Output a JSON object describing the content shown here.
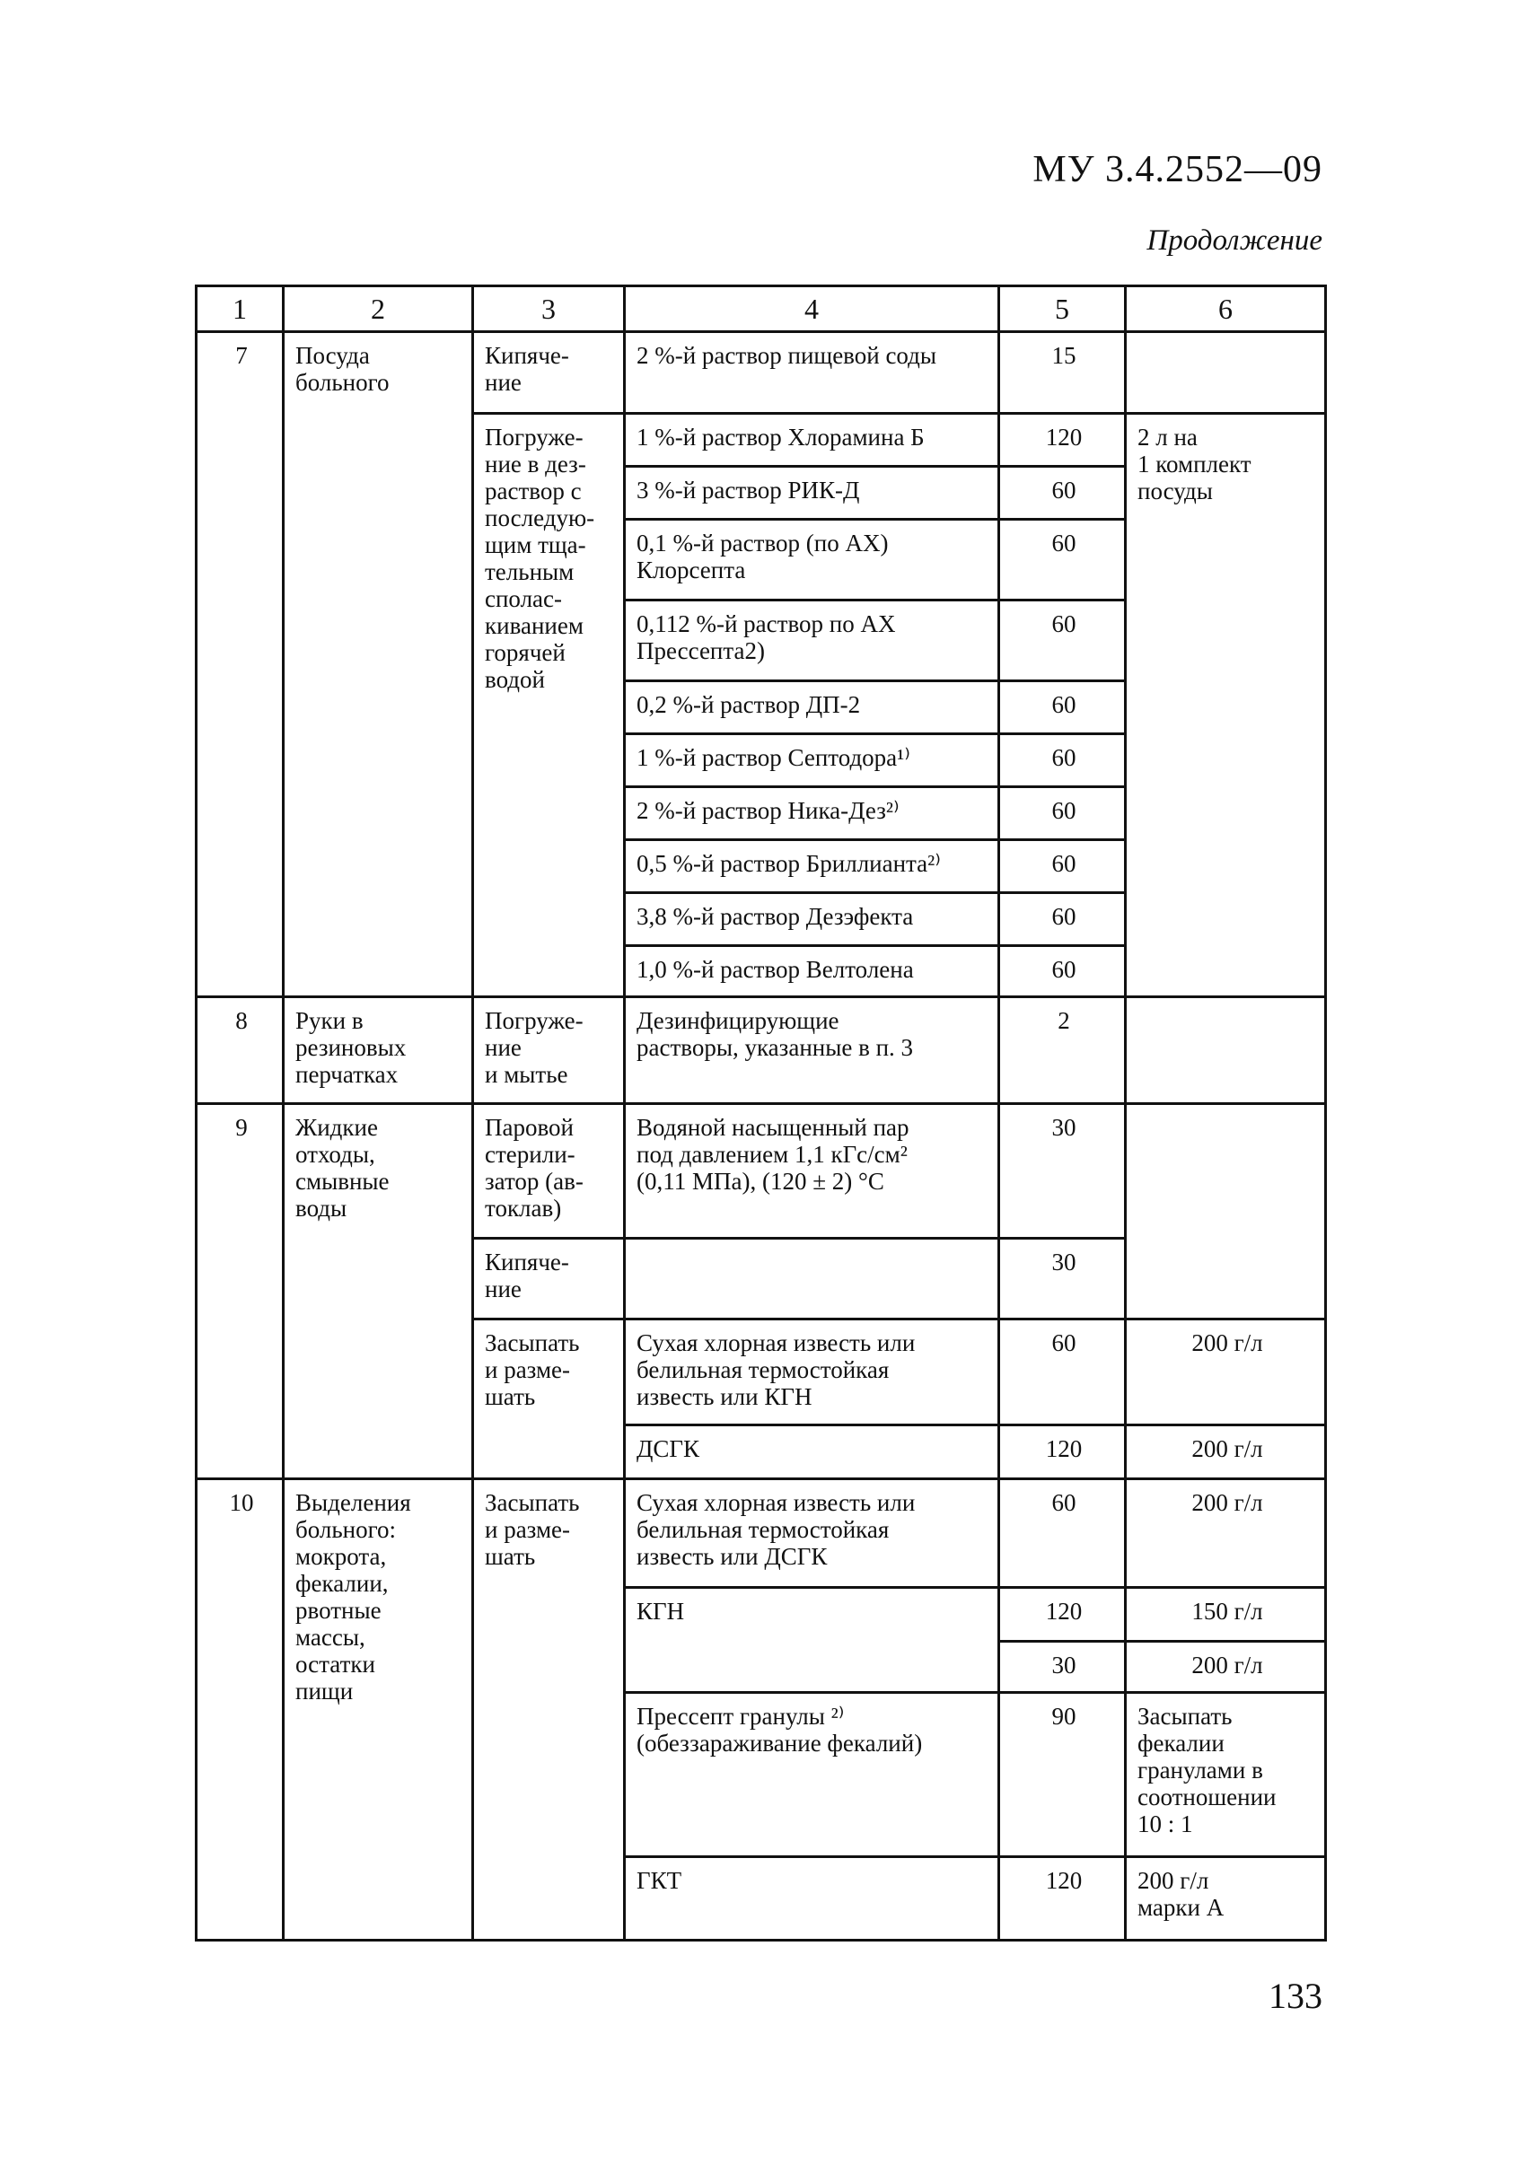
{
  "header": {
    "doc_code": "МУ 3.4.2552—09",
    "continuation": "Продолжение"
  },
  "table": {
    "headers": [
      "1",
      "2",
      "3",
      "4",
      "5",
      "6"
    ],
    "r7": {
      "num": "7",
      "object": "Посуда\nбольного",
      "methods": [
        "Кипяче-\nние",
        "Погруже-\nние в дез-\nраствор с\nпоследую-\nщим тща-\nтельным\nсполас-\nкиванием\nгорячей\nводой"
      ],
      "agents": [
        "2 %-й раствор пищевой соды",
        "1 %-й раствор Хлорамина Б",
        "3 %-й раствор РИК-Д",
        "0,1 %-й раствор (по АХ)\nКлорсепта",
        "0,112 %-й раствор по АХ\nПрессепта2)",
        "0,2 %-й  раствор ДП-2",
        "1 %-й раствор Септодора¹⁾",
        "2 %-й раствор Ника-Дез²⁾",
        "0,5 %-й раствор Бриллианта²⁾",
        "3,8 %-й раствор Дезэфекта",
        "1,0 %-й раствор Велтолена"
      ],
      "times": [
        "15",
        "120",
        "60",
        "60",
        "60",
        "60",
        "60",
        "60",
        "60",
        "60",
        "60"
      ],
      "norms": [
        "",
        "2 л на\n1 комплект\nпосуды"
      ]
    },
    "r8": {
      "num": "8",
      "object": "Руки в\nрезиновых\nперчатках",
      "method": "Погруже-\nние\nи мытье",
      "agent": "Дезинфицирующие\nрастворы, указанные в п. 3",
      "time": "2",
      "norm": ""
    },
    "r9": {
      "num": "9",
      "object": "Жидкие\nотходы,\nсмывные\nводы",
      "methods": [
        "Паровой\nстерили-\nзатор (ав-\nтоклав)",
        "Кипяче-\nние",
        "Засыпать\nи разме-\nшать"
      ],
      "agents": [
        "Водяной насыщенный пар\nпод давлением 1,1 кГс/см²\n(0,11 МПа), (120 ± 2) °С",
        "",
        "Сухая хлорная известь или\nбелильная термостойкая\nизвесть или КГН",
        "ДСГК"
      ],
      "times": [
        "30",
        "30",
        "60",
        "120"
      ],
      "norms": [
        "",
        "200 г/л",
        "200 г/л"
      ]
    },
    "r10": {
      "num": "10",
      "object": "Выделения\nбольного:\nмокрота,\nфекалии,\nрвотные\nмассы,\nостатки\nпищи",
      "method": "Засыпать\nи разме-\nшать",
      "agents": [
        "Сухая хлорная известь или\nбелильная термостойкая\nизвесть или ДСГК",
        "КГН",
        "Прессепт гранулы ²⁾\n(обеззараживание фекалий)",
        "ГКТ"
      ],
      "times": [
        "60",
        "120",
        "30",
        "90",
        "120"
      ],
      "norms": [
        "200 г/л",
        "150 г/л",
        "200 г/л",
        "Засыпать\nфекалии\nгранулами в\nсоотношении\n10 : 1",
        "200 г/л\nмарки А"
      ]
    }
  },
  "footer": {
    "page_number": "133"
  }
}
